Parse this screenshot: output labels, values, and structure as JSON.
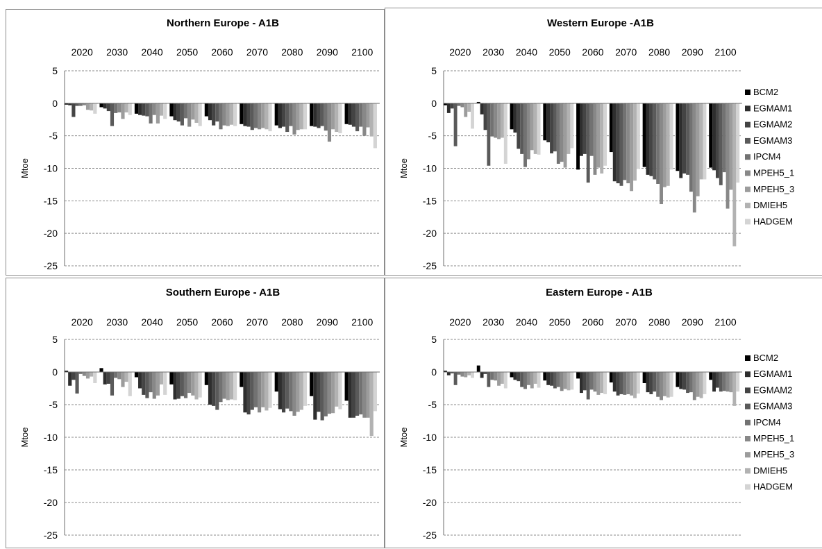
{
  "chart_data": [
    {
      "type": "bar",
      "title": "Northern Europe - A1B",
      "xlabel": "",
      "ylabel": "Mtoe",
      "ylim": [
        -25,
        5
      ],
      "yticks": [
        5,
        0,
        -5,
        -10,
        -15,
        -20,
        -25
      ],
      "categories": [
        "2020",
        "2030",
        "2040",
        "2050",
        "2060",
        "2070",
        "2080",
        "2090",
        "2100"
      ],
      "grid": true,
      "legend": "none",
      "series": [
        {
          "name": "BCM2",
          "color": "#000000",
          "values": [
            -0.2,
            -0.6,
            -1.6,
            -2.0,
            -2.0,
            -3.2,
            -3.4,
            -3.5,
            -3.2
          ]
        },
        {
          "name": "EGMAM1",
          "color": "#2e2e2e",
          "values": [
            -0.3,
            -0.8,
            -1.8,
            -2.6,
            -2.6,
            -3.5,
            -3.8,
            -3.6,
            -3.3
          ]
        },
        {
          "name": "EGMAM2",
          "color": "#444444",
          "values": [
            -2.1,
            -1.2,
            -1.9,
            -2.8,
            -3.4,
            -3.6,
            -3.6,
            -3.8,
            -3.6
          ]
        },
        {
          "name": "EGMAM3",
          "color": "#5a5a5a",
          "values": [
            -0.4,
            -3.5,
            -2.0,
            -3.4,
            -2.8,
            -4.1,
            -4.4,
            -3.5,
            -4.3
          ]
        },
        {
          "name": "IPCM4",
          "color": "#727272",
          "values": [
            -0.4,
            -1.5,
            -3.1,
            -2.3,
            -4.0,
            -3.8,
            -3.5,
            -4.2,
            -3.6
          ]
        },
        {
          "name": "MPEH5_1",
          "color": "#888888",
          "values": [
            -0.3,
            -1.4,
            -1.8,
            -3.6,
            -3.4,
            -4.0,
            -4.8,
            -5.9,
            -5.0
          ]
        },
        {
          "name": "MPEH5_3",
          "color": "#9c9c9c",
          "values": [
            -1.0,
            -2.4,
            -3.1,
            -2.5,
            -3.5,
            -3.8,
            -4.1,
            -4.0,
            -3.7
          ]
        },
        {
          "name": "DMIEH5",
          "color": "#b2b2b2",
          "values": [
            -1.1,
            -1.4,
            -1.9,
            -3.0,
            -3.3,
            -4.0,
            -4.0,
            -4.4,
            -5.1
          ]
        },
        {
          "name": "HADGEM",
          "color": "#d4d4d4",
          "values": [
            -1.6,
            -1.8,
            -2.4,
            -3.5,
            -3.5,
            -4.3,
            -4.0,
            -4.6,
            -6.9
          ]
        }
      ]
    },
    {
      "type": "bar",
      "title": "Western Europe -A1B",
      "xlabel": "",
      "ylabel": "Mtoe",
      "ylim": [
        -25,
        5
      ],
      "yticks": [
        5,
        0,
        -5,
        -10,
        -15,
        -20,
        -25
      ],
      "categories": [
        "2020",
        "2030",
        "2040",
        "2050",
        "2060",
        "2070",
        "2080",
        "2090",
        "2100"
      ],
      "grid": true,
      "legend": "right",
      "series": [
        {
          "name": "BCM2",
          "color": "#000000",
          "values": [
            -0.3,
            0.2,
            -4.0,
            -5.7,
            -10.2,
            -7.5,
            -9.8,
            -10.4,
            -9.9
          ]
        },
        {
          "name": "EGMAM1",
          "color": "#2e2e2e",
          "values": [
            -1.5,
            -1.7,
            -4.5,
            -6.0,
            -8.1,
            -12.0,
            -11.0,
            -11.5,
            -10.3
          ]
        },
        {
          "name": "EGMAM2",
          "color": "#444444",
          "values": [
            -0.8,
            -4.1,
            -7.0,
            -7.7,
            -7.8,
            -12.3,
            -11.2,
            -10.8,
            -11.5
          ]
        },
        {
          "name": "EGMAM3",
          "color": "#5a5a5a",
          "values": [
            -6.6,
            -9.6,
            -7.8,
            -7.4,
            -12.2,
            -12.7,
            -11.7,
            -11.0,
            -12.6
          ]
        },
        {
          "name": "IPCM4",
          "color": "#727272",
          "values": [
            -0.4,
            -5.1,
            -9.8,
            -9.3,
            -8.1,
            -11.8,
            -12.4,
            -13.6,
            -10.6
          ]
        },
        {
          "name": "MPEH5_1",
          "color": "#888888",
          "values": [
            -0.6,
            -5.3,
            -8.6,
            -9.0,
            -11.0,
            -12.3,
            -15.5,
            -16.8,
            -16.2
          ]
        },
        {
          "name": "MPEH5_3",
          "color": "#9c9c9c",
          "values": [
            -2.1,
            -5.5,
            -7.2,
            -9.9,
            -9.9,
            -13.5,
            -12.9,
            -14.3,
            -13.3
          ]
        },
        {
          "name": "DMIEH5",
          "color": "#b2b2b2",
          "values": [
            -1.3,
            -5.3,
            -7.8,
            -7.8,
            -10.8,
            -11.9,
            -12.7,
            -11.7,
            -22.0
          ]
        },
        {
          "name": "HADGEM",
          "color": "#d4d4d4",
          "values": [
            -3.9,
            -9.3,
            -7.9,
            -6.9,
            -9.6,
            -10.1,
            -10.2,
            -11.7,
            -12.2
          ]
        }
      ]
    },
    {
      "type": "bar",
      "title": "Southern Europe - A1B",
      "xlabel": "",
      "ylabel": "Mtoe",
      "ylim": [
        -25,
        5
      ],
      "yticks": [
        5,
        0,
        -5,
        -10,
        -15,
        -20,
        -25
      ],
      "categories": [
        "2020",
        "2030",
        "2040",
        "2050",
        "2060",
        "2070",
        "2080",
        "2090",
        "2100"
      ],
      "grid": true,
      "legend": "none",
      "series": [
        {
          "name": "BCM2",
          "color": "#000000",
          "values": [
            0.2,
            0.6,
            -0.8,
            -1.9,
            -2.0,
            -2.3,
            -3.0,
            -3.7,
            -4.4
          ]
        },
        {
          "name": "EGMAM1",
          "color": "#2e2e2e",
          "values": [
            -2.1,
            -1.9,
            -2.5,
            -4.2,
            -5.0,
            -6.2,
            -5.7,
            -7.3,
            -7.0
          ]
        },
        {
          "name": "EGMAM2",
          "color": "#444444",
          "values": [
            -1.2,
            -1.8,
            -3.5,
            -4.1,
            -5.2,
            -6.5,
            -6.2,
            -6.1,
            -7.0
          ]
        },
        {
          "name": "EGMAM3",
          "color": "#5a5a5a",
          "values": [
            -3.3,
            -3.6,
            -4.0,
            -3.7,
            -5.8,
            -5.8,
            -5.6,
            -7.4,
            -6.7
          ]
        },
        {
          "name": "IPCM4",
          "color": "#727272",
          "values": [
            -0.3,
            -0.9,
            -3.1,
            -4.0,
            -4.6,
            -5.4,
            -6.0,
            -6.8,
            -6.5
          ]
        },
        {
          "name": "MPEH5_1",
          "color": "#888888",
          "values": [
            -0.6,
            -1.1,
            -4.1,
            -3.2,
            -4.1,
            -6.2,
            -6.7,
            -6.4,
            -7.0
          ]
        },
        {
          "name": "MPEH5_3",
          "color": "#9c9c9c",
          "values": [
            -1.0,
            -2.3,
            -3.6,
            -3.6,
            -4.3,
            -5.4,
            -6.1,
            -6.3,
            -7.0
          ]
        },
        {
          "name": "DMIEH5",
          "color": "#b2b2b2",
          "values": [
            -0.7,
            -1.5,
            -1.9,
            -4.2,
            -4.2,
            -5.9,
            -5.8,
            -5.3,
            -9.8
          ]
        },
        {
          "name": "HADGEM",
          "color": "#d4d4d4",
          "values": [
            -1.7,
            -3.7,
            -3.5,
            -3.9,
            -4.3,
            -5.5,
            -5.2,
            -5.7,
            -6.0
          ]
        }
      ]
    },
    {
      "type": "bar",
      "title": "Eastern Europe - A1B",
      "xlabel": "",
      "ylabel": "Mtoe",
      "ylim": [
        -25,
        5
      ],
      "yticks": [
        5,
        0,
        -5,
        -10,
        -15,
        -20,
        -25
      ],
      "categories": [
        "2020",
        "2030",
        "2040",
        "2050",
        "2060",
        "2070",
        "2080",
        "2090",
        "2100"
      ],
      "grid": true,
      "legend": "right",
      "series": [
        {
          "name": "BCM2",
          "color": "#000000",
          "values": [
            0.2,
            1.0,
            -0.8,
            -1.3,
            -1.0,
            -1.6,
            -1.7,
            -2.3,
            -1.2
          ]
        },
        {
          "name": "EGMAM1",
          "color": "#2e2e2e",
          "values": [
            -0.5,
            -0.9,
            -1.2,
            -2.0,
            -3.2,
            -3.0,
            -3.1,
            -2.6,
            -3.0
          ]
        },
        {
          "name": "EGMAM2",
          "color": "#444444",
          "values": [
            -0.2,
            -0.3,
            -1.4,
            -2.1,
            -2.8,
            -3.6,
            -3.4,
            -2.7,
            -2.4
          ]
        },
        {
          "name": "EGMAM3",
          "color": "#5a5a5a",
          "values": [
            -2.0,
            -2.3,
            -2.3,
            -2.5,
            -4.2,
            -3.4,
            -3.0,
            -3.2,
            -3.0
          ]
        },
        {
          "name": "IPCM4",
          "color": "#727272",
          "values": [
            -0.4,
            -1.2,
            -2.6,
            -2.3,
            -2.7,
            -3.5,
            -3.8,
            -3.1,
            -2.9
          ]
        },
        {
          "name": "MPEH5_1",
          "color": "#888888",
          "values": [
            -0.7,
            -1.3,
            -2.0,
            -2.9,
            -3.0,
            -3.4,
            -4.3,
            -4.3,
            -3.0
          ]
        },
        {
          "name": "MPEH5_3",
          "color": "#9c9c9c",
          "values": [
            -0.8,
            -2.1,
            -2.5,
            -2.6,
            -3.5,
            -3.6,
            -3.7,
            -3.8,
            -3.1
          ]
        },
        {
          "name": "DMIEH5",
          "color": "#b2b2b2",
          "values": [
            -0.5,
            -1.8,
            -1.8,
            -2.8,
            -3.2,
            -4.0,
            -3.9,
            -4.0,
            -5.2
          ]
        },
        {
          "name": "HADGEM",
          "color": "#d4d4d4",
          "values": [
            -0.9,
            -2.5,
            -2.4,
            -2.7,
            -3.4,
            -3.3,
            -3.8,
            -3.4,
            -3.0
          ]
        }
      ]
    }
  ]
}
